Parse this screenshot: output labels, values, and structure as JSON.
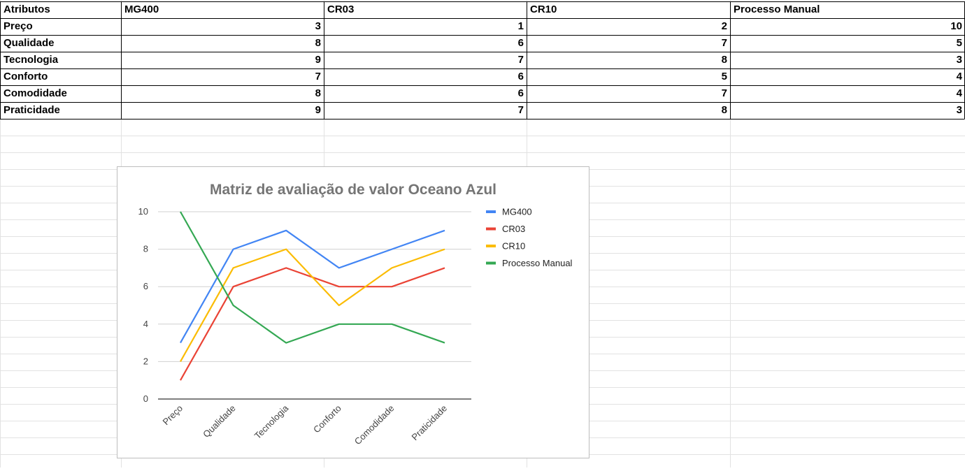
{
  "table": {
    "header": [
      "Atributos",
      "MG400",
      "CR03",
      "CR10",
      "Processo Manual"
    ],
    "rows": [
      {
        "label": "Preço",
        "values": [
          "3",
          "1",
          "2",
          "10"
        ]
      },
      {
        "label": "Qualidade",
        "values": [
          "8",
          "6",
          "7",
          "5"
        ]
      },
      {
        "label": "Tecnologia",
        "values": [
          "9",
          "7",
          "8",
          "3"
        ]
      },
      {
        "label": "Conforto",
        "values": [
          "7",
          "6",
          "5",
          "4"
        ]
      },
      {
        "label": "Comodidade",
        "values": [
          "8",
          "6",
          "7",
          "4"
        ]
      },
      {
        "label": "Praticidade",
        "values": [
          "9",
          "7",
          "8",
          "3"
        ]
      }
    ]
  },
  "chart_data": {
    "type": "line",
    "title": "Matriz de avaliação de valor Oceano Azul",
    "xlabel": "",
    "ylabel": "",
    "categories": [
      "Preço",
      "Qualidade",
      "Tecnologia",
      "Conforto",
      "Comodidade",
      "Praticidade"
    ],
    "ylim": [
      0,
      10
    ],
    "yticks": [
      "0",
      "2",
      "4",
      "6",
      "8",
      "10"
    ],
    "grid": true,
    "legend": "right",
    "series": [
      {
        "name": "MG400",
        "color": "#4285f4",
        "values": [
          3,
          8,
          9,
          7,
          8,
          9
        ]
      },
      {
        "name": "CR03",
        "color": "#ea4335",
        "values": [
          1,
          6,
          7,
          6,
          6,
          7
        ]
      },
      {
        "name": "CR10",
        "color": "#fbbc04",
        "values": [
          2,
          7,
          8,
          5,
          7,
          8
        ]
      },
      {
        "name": "Processo Manual",
        "color": "#34a853",
        "values": [
          10,
          5,
          3,
          4,
          4,
          3
        ]
      }
    ]
  }
}
